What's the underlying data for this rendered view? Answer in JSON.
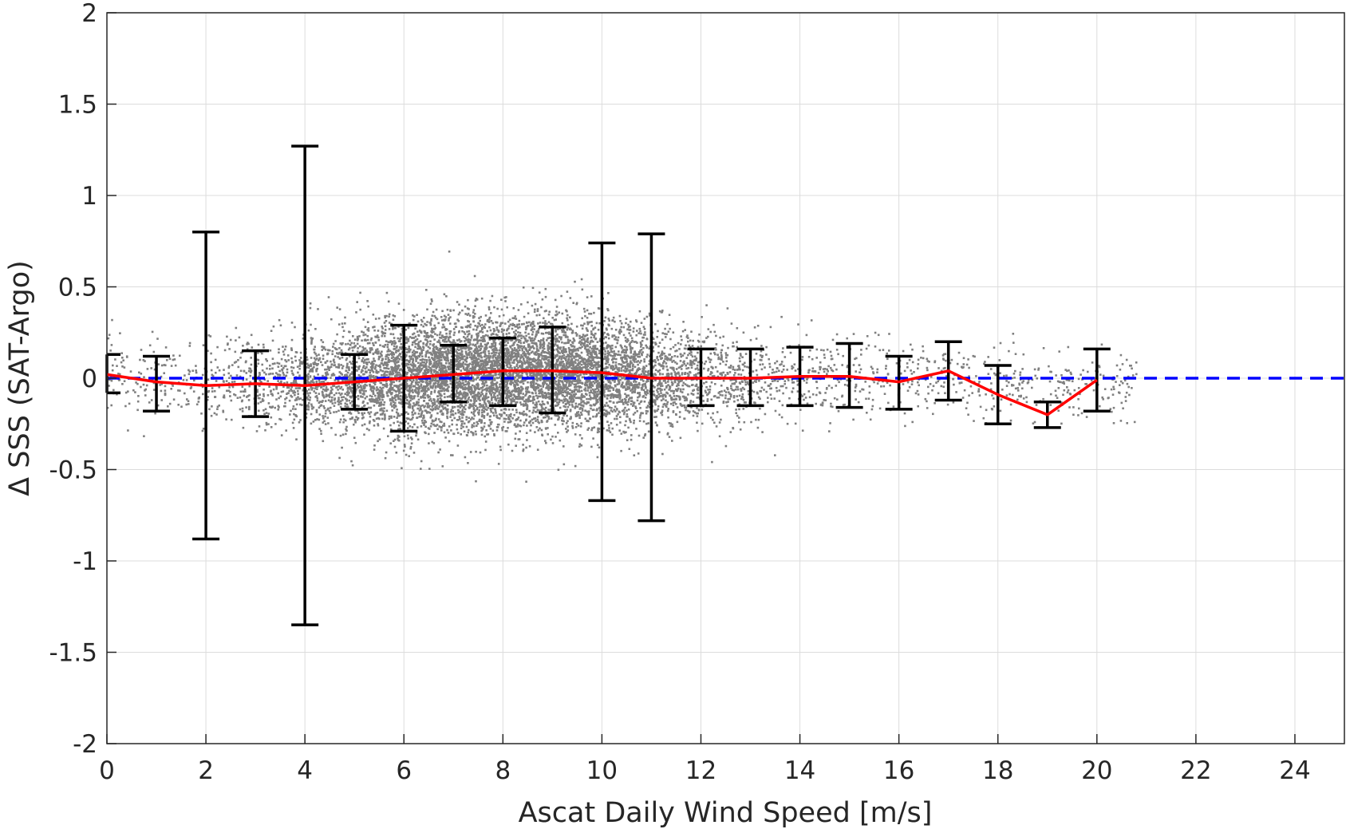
{
  "chart_data": {
    "type": "scatter",
    "title": "",
    "xlabel": "Ascat Daily Wind Speed [m/s]",
    "ylabel": "Δ SSS (SAT-Argo)",
    "xlim": [
      0,
      25
    ],
    "ylim": [
      -2,
      2
    ],
    "x_ticks": [
      0,
      2,
      4,
      6,
      8,
      10,
      12,
      14,
      16,
      18,
      20,
      22,
      24
    ],
    "y_ticks": [
      -2,
      -1.5,
      -1,
      -0.5,
      0,
      0.5,
      1,
      1.5,
      2
    ],
    "x_tick_labels": [
      "0",
      "2",
      "4",
      "6",
      "8",
      "10",
      "12",
      "14",
      "16",
      "18",
      "20",
      "22",
      "24"
    ],
    "y_tick_labels": [
      "-2",
      "-1.5",
      "-1",
      "-0.5",
      "0",
      "0.5",
      "1",
      "1.5",
      "2"
    ],
    "grid": true,
    "legend": "none",
    "scatter_cloud": {
      "color": "#808080",
      "description_stats": [
        {
          "x": 0.5,
          "mean": 0.0,
          "sd": 0.1
        },
        {
          "x": 3,
          "mean": -0.03,
          "sd": 0.12
        },
        {
          "x": 5,
          "mean": -0.01,
          "sd": 0.15
        },
        {
          "x": 7,
          "mean": 0.02,
          "sd": 0.16
        },
        {
          "x": 9,
          "mean": 0.03,
          "sd": 0.16
        },
        {
          "x": 11,
          "mean": 0.01,
          "sd": 0.14
        },
        {
          "x": 13,
          "mean": 0.0,
          "sd": 0.12
        },
        {
          "x": 15,
          "mean": 0.01,
          "sd": 0.11
        },
        {
          "x": 17,
          "mean": 0.0,
          "sd": 0.1
        },
        {
          "x": 19,
          "mean": -0.05,
          "sd": 0.1
        },
        {
          "x": 20.5,
          "mean": -0.05,
          "sd": 0.08
        }
      ]
    },
    "zero_line": {
      "y": 0,
      "color": "#0000ff",
      "style": "dashed"
    },
    "series": [
      {
        "kind": "line",
        "color": "#ff0000",
        "x": [
          0,
          1,
          2,
          3,
          4,
          5,
          6,
          7,
          8,
          9,
          10,
          11,
          12,
          13,
          14,
          15,
          16,
          17,
          18,
          19,
          20
        ],
        "values": [
          0.02,
          -0.02,
          -0.04,
          -0.03,
          -0.04,
          -0.02,
          0.0,
          0.02,
          0.04,
          0.04,
          0.03,
          0.0,
          0.0,
          0.0,
          0.01,
          0.01,
          -0.02,
          0.04,
          -0.09,
          -0.2,
          -0.01
        ]
      },
      {
        "kind": "errorbar",
        "color": "#000000",
        "x": [
          0,
          1,
          2,
          3,
          4,
          5,
          6,
          7,
          8,
          9,
          10,
          11,
          12,
          13,
          14,
          15,
          16,
          17,
          18,
          19,
          20
        ],
        "upper": [
          0.13,
          0.12,
          0.8,
          0.15,
          1.27,
          0.13,
          0.29,
          0.18,
          0.22,
          0.28,
          0.74,
          0.79,
          0.16,
          0.16,
          0.17,
          0.19,
          0.12,
          0.2,
          0.07,
          -0.13,
          0.16
        ],
        "lower": [
          -0.08,
          -0.18,
          -0.88,
          -0.21,
          -1.35,
          -0.17,
          -0.29,
          -0.13,
          -0.15,
          -0.19,
          -0.67,
          -0.78,
          -0.15,
          -0.15,
          -0.15,
          -0.16,
          -0.17,
          -0.12,
          -0.25,
          -0.27,
          -0.18
        ]
      }
    ]
  }
}
